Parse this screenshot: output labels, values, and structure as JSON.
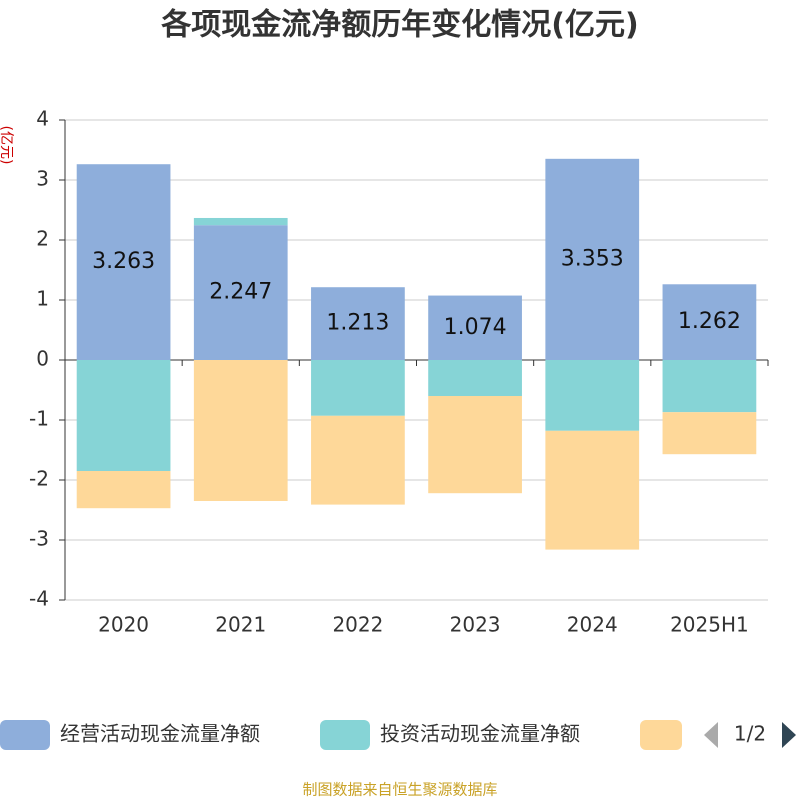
{
  "chart_data": {
    "type": "bar",
    "stacked": true,
    "title": "各项现金流净额历年变化情况(亿元)",
    "y_label": "(亿元)",
    "categories": [
      "2020",
      "2021",
      "2022",
      "2023",
      "2024",
      "2025H1"
    ],
    "series": [
      {
        "name": "经营活动现金流量净额",
        "color": "#8eaedb",
        "values": [
          3.263,
          2.247,
          1.213,
          1.074,
          3.353,
          1.262
        ],
        "labels": true
      },
      {
        "name": "投资活动现金流量净额",
        "color": "#86d4d6",
        "values": [
          -1.85,
          0.12,
          -0.93,
          -0.6,
          -1.18,
          -0.87
        ]
      },
      {
        "color": "#fed899",
        "values": [
          -0.62,
          -2.35,
          -1.48,
          -1.62,
          -1.98,
          -0.7
        ]
      }
    ],
    "ylim": [
      -4,
      4
    ],
    "yticks": [
      -4,
      -3,
      -2,
      -1,
      0,
      1,
      2,
      3,
      4
    ],
    "grid": true,
    "legend_page": "1/2",
    "source": "制图数据来自恒生聚源数据库"
  }
}
